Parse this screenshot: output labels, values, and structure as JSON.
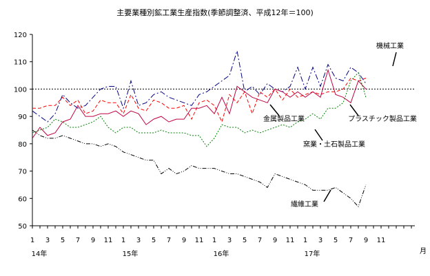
{
  "chart_data": {
    "type": "line",
    "title": "主要業種別鉱工業生産指数(季節調整済、平成12年＝100)",
    "ylim": [
      50,
      120
    ],
    "yticks": [
      50,
      60,
      70,
      80,
      90,
      100,
      110,
      120
    ],
    "reference_line": 100,
    "x_count": 45,
    "x_tick_labels": [
      "1",
      "3",
      "5",
      "7",
      "9",
      "11",
      "1",
      "3",
      "5",
      "7",
      "9",
      "11",
      "1",
      "3",
      "5",
      "7",
      "9",
      "11",
      "1",
      "3",
      "5",
      "7",
      "9",
      "11"
    ],
    "year_labels": [
      "14年",
      "15年",
      "16年",
      "17年"
    ],
    "x_unit_label": "月",
    "series": [
      {
        "name": "機械工業",
        "color": "#000080",
        "dash": "8,3,2,3",
        "values": [
          92,
          90,
          88,
          91,
          98,
          95,
          93,
          94,
          97,
          100,
          101,
          101,
          93,
          103,
          94,
          95,
          98,
          99,
          97,
          96,
          95,
          94,
          98,
          99,
          101,
          103,
          105,
          114,
          99,
          101,
          98,
          102,
          100,
          99,
          101,
          108,
          100,
          108,
          101,
          109,
          104,
          103,
          108,
          106,
          102
        ]
      },
      {
        "name": "金属製品工業",
        "color": "#ff0000",
        "dash": "5,3",
        "values": [
          93,
          93,
          94,
          94,
          97,
          94,
          96,
          91,
          92,
          96,
          95,
          95,
          91,
          98,
          93,
          92,
          96,
          95,
          93,
          93,
          94,
          89,
          95,
          96,
          94,
          88,
          98,
          95,
          99,
          91,
          99,
          97,
          100,
          96,
          100,
          97,
          98,
          99,
          98,
          99,
          99,
          100,
          104,
          103,
          104
        ]
      },
      {
        "name": "プラスチック製品工業",
        "color": "#c00040",
        "dash": "",
        "values": [
          82,
          86,
          83,
          84,
          88,
          89,
          94,
          90,
          90,
          91,
          91,
          92,
          90,
          92,
          91,
          87,
          89,
          90,
          88,
          89,
          89,
          93,
          93,
          94,
          91,
          97,
          91,
          101,
          99,
          97,
          96,
          95,
          100,
          99,
          97,
          99,
          97,
          99,
          97,
          107,
          98,
          97,
          95,
          103,
          100
        ]
      },
      {
        "name": "窯業・土石製品工業",
        "color": "#008000",
        "dash": "2,2",
        "values": [
          84,
          85,
          86,
          89,
          88,
          86,
          86,
          87,
          88,
          90,
          86,
          84,
          86,
          86,
          84,
          84,
          84,
          85,
          84,
          84,
          84,
          83,
          83,
          79,
          82,
          87,
          86,
          86,
          84,
          85,
          84,
          85,
          86,
          87,
          86,
          88,
          89,
          91,
          89,
          93,
          93,
          95,
          103,
          106,
          97
        ]
      },
      {
        "name": "繊維工業",
        "color": "#000000",
        "dash": "6,2,1,2,1,2",
        "values": [
          85,
          83,
          82,
          82,
          83,
          82,
          81,
          80,
          80,
          79,
          80,
          79,
          77,
          76,
          75,
          74,
          74,
          69,
          71,
          69,
          70,
          72,
          71,
          71,
          71,
          70,
          69,
          69,
          68,
          67,
          66,
          64,
          69,
          68,
          67,
          66,
          65,
          63,
          63,
          63,
          64,
          62,
          60,
          57,
          65
        ]
      }
    ],
    "annotations": [
      {
        "text": "機械工業",
        "series": "機械工業"
      },
      {
        "text": "金属製品工業",
        "series": "金属製品工業"
      },
      {
        "text": "プラスチック製品工業",
        "series": "プラスチック製品工業"
      },
      {
        "text": "窯業・土石製品工業",
        "series": "窯業・土石製品工業"
      },
      {
        "text": "繊維工業",
        "series": "繊維工業"
      }
    ]
  }
}
